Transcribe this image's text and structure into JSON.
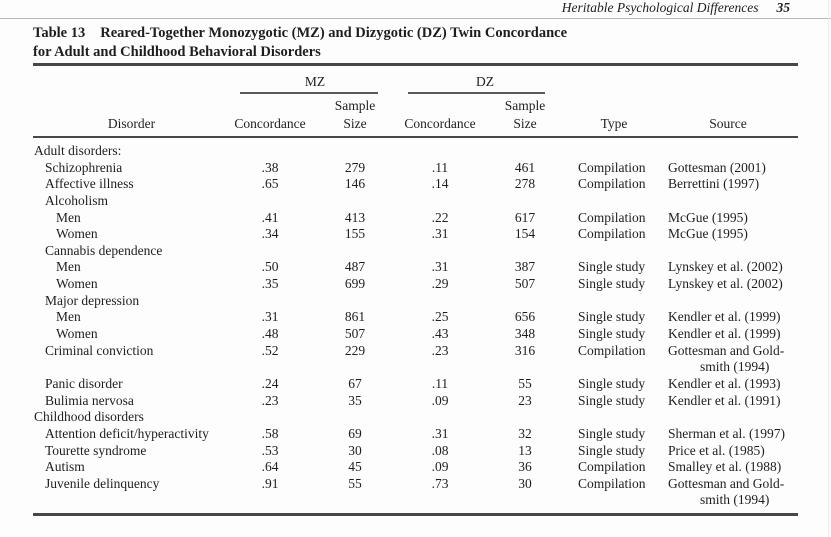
{
  "running_head": {
    "title": "Heritable Psychological Differences",
    "page_number": "35"
  },
  "table": {
    "label": "Table 13",
    "title_line1": "Reared-Together Monozygotic (MZ) and Dizygotic (DZ) Twin Concordance",
    "title_line2": "for Adult and Childhood Behavioral Disorders",
    "column_groups": {
      "mz": "MZ",
      "dz": "DZ"
    },
    "columns": {
      "disorder": "Disorder",
      "concordance": "Concordance",
      "sample_line1": "Sample",
      "sample_line2": "Size",
      "type": "Type",
      "source": "Source"
    },
    "rows": [
      {
        "label": "Adult disorders:",
        "indent": 0
      },
      {
        "label": "Schizophrenia",
        "indent": 1,
        "mz_concordance": ".38",
        "mz_sample_size": "279",
        "dz_concordance": ".11",
        "dz_sample_size": "461",
        "type": "Compilation",
        "source": "Gottesman (2001)"
      },
      {
        "label": "Affective illness",
        "indent": 1,
        "mz_concordance": ".65",
        "mz_sample_size": "146",
        "dz_concordance": ".14",
        "dz_sample_size": "278",
        "type": "Compilation",
        "source": "Berrettini (1997)"
      },
      {
        "label": "Alcoholism",
        "indent": 1
      },
      {
        "label": "Men",
        "indent": 2,
        "mz_concordance": ".41",
        "mz_sample_size": "413",
        "dz_concordance": ".22",
        "dz_sample_size": "617",
        "type": "Compilation",
        "source": "McGue (1995)"
      },
      {
        "label": "Women",
        "indent": 2,
        "mz_concordance": ".34",
        "mz_sample_size": "155",
        "dz_concordance": ".31",
        "dz_sample_size": "154",
        "type": "Compilation",
        "source": "McGue (1995)"
      },
      {
        "label": "Cannabis dependence",
        "indent": 1
      },
      {
        "label": "Men",
        "indent": 2,
        "mz_concordance": ".50",
        "mz_sample_size": "487",
        "dz_concordance": ".31",
        "dz_sample_size": "387",
        "type": "Single study",
        "source": "Lynskey et al. (2002)"
      },
      {
        "label": "Women",
        "indent": 2,
        "mz_concordance": ".35",
        "mz_sample_size": "699",
        "dz_concordance": ".29",
        "dz_sample_size": "507",
        "type": "Single study",
        "source": "Lynskey et al. (2002)"
      },
      {
        "label": "Major depression",
        "indent": 1
      },
      {
        "label": "Men",
        "indent": 2,
        "mz_concordance": ".31",
        "mz_sample_size": "861",
        "dz_concordance": ".25",
        "dz_sample_size": "656",
        "type": "Single study",
        "source": "Kendler et al. (1999)"
      },
      {
        "label": "Women",
        "indent": 2,
        "mz_concordance": ".48",
        "mz_sample_size": "507",
        "dz_concordance": ".43",
        "dz_sample_size": "348",
        "type": "Single study",
        "source": "Kendler et al. (1999)"
      },
      {
        "label": "Criminal conviction",
        "indent": 1,
        "mz_concordance": ".52",
        "mz_sample_size": "229",
        "dz_concordance": ".23",
        "dz_sample_size": "316",
        "type": "Compilation",
        "source": [
          "Gottesman and Gold-",
          "smith (1994)"
        ]
      },
      {
        "label": "Panic disorder",
        "indent": 1,
        "mz_concordance": ".24",
        "mz_sample_size": "67",
        "dz_concordance": ".11",
        "dz_sample_size": "55",
        "type": "Single study",
        "source": "Kendler et al. (1993)"
      },
      {
        "label": "Bulimia nervosa",
        "indent": 1,
        "mz_concordance": ".23",
        "mz_sample_size": "35",
        "dz_concordance": ".09",
        "dz_sample_size": "23",
        "type": "Single study",
        "source": "Kendler et al. (1991)"
      },
      {
        "label": "Childhood disorders",
        "indent": 0
      },
      {
        "label": "Attention deficit/hyperactivity",
        "indent": 1,
        "mz_concordance": ".58",
        "mz_sample_size": "69",
        "dz_concordance": ".31",
        "dz_sample_size": "32",
        "type": "Single study",
        "source": "Sherman et al. (1997)"
      },
      {
        "label": "Tourette syndrome",
        "indent": 1,
        "mz_concordance": ".53",
        "mz_sample_size": "30",
        "dz_concordance": ".08",
        "dz_sample_size": "13",
        "type": "Single study",
        "source": "Price et al. (1985)"
      },
      {
        "label": "Autism",
        "indent": 1,
        "mz_concordance": ".64",
        "mz_sample_size": "45",
        "dz_concordance": ".09",
        "dz_sample_size": "36",
        "type": "Compilation",
        "source": "Smalley et al. (1988)"
      },
      {
        "label": "Juvenile delinquency",
        "indent": 1,
        "mz_concordance": ".91",
        "mz_sample_size": "55",
        "dz_concordance": ".73",
        "dz_sample_size": "30",
        "type": "Compilation",
        "source": [
          "Gottesman and Gold-",
          "smith (1994)"
        ]
      }
    ]
  }
}
